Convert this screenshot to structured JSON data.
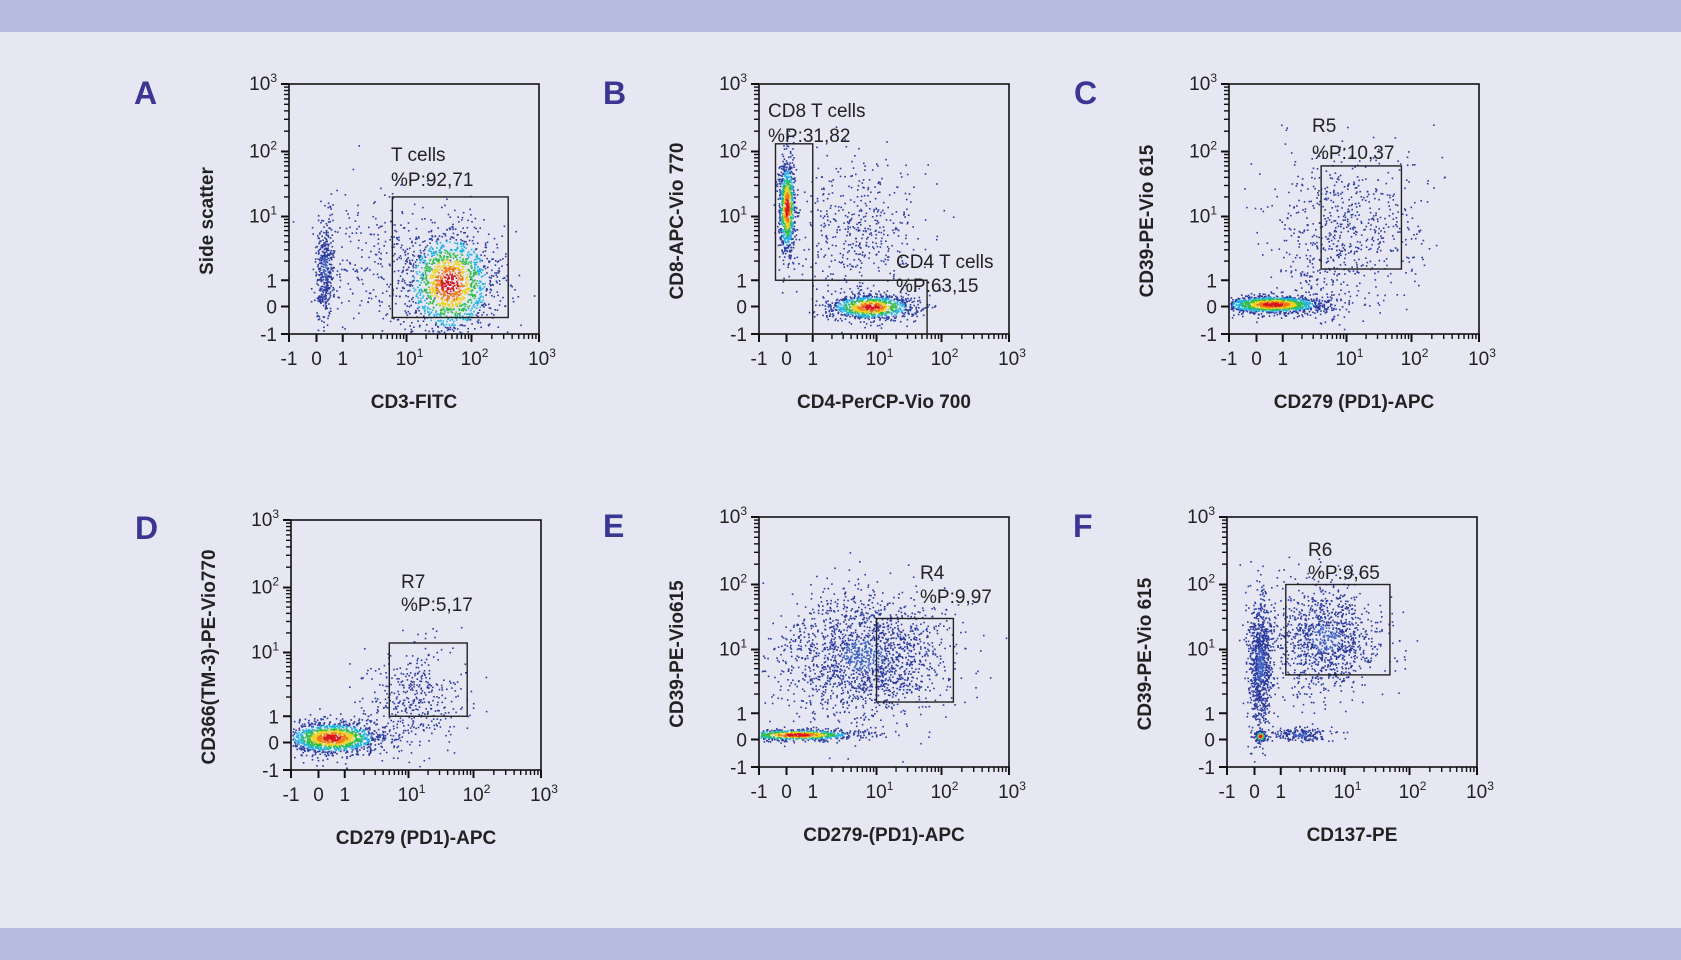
{
  "colors": {
    "background": "#e6e7f3",
    "band": "#b4bbdf",
    "panel_letter": "#3b3594",
    "density_colormap": [
      "#2b3a9e",
      "#1fb5e0",
      "#2fbf4a",
      "#f0d21c",
      "#f07a14",
      "#d9141c"
    ]
  },
  "chart_data": [
    {
      "panel": "A",
      "type": "scatter",
      "scale": "biexponential",
      "xlabel": "CD3-FITC",
      "ylabel": "Side scatter",
      "xlim": [
        -1,
        1000
      ],
      "ylim": [
        -1,
        1000
      ],
      "x_ticks": [
        {
          "b": "-1",
          "e": ""
        },
        {
          "b": "0",
          "e": ""
        },
        {
          "b": "1",
          "e": ""
        },
        {
          "b": "10",
          "e": "1"
        },
        {
          "b": "10",
          "e": "2"
        },
        {
          "b": "10",
          "e": "3"
        }
      ],
      "y_ticks": [
        {
          "b": "-1",
          "e": ""
        },
        {
          "b": "0",
          "e": ""
        },
        {
          "b": "1",
          "e": ""
        },
        {
          "b": "10",
          "e": "1"
        },
        {
          "b": "10",
          "e": "2"
        },
        {
          "b": "10",
          "e": "3"
        }
      ],
      "gates": [
        {
          "name": "T cells",
          "percent": "%P:92,71",
          "x": [
            6,
            350
          ],
          "y": [
            -0.4,
            20
          ]
        }
      ],
      "populations": [
        {
          "x_center": 45,
          "y_center": 0.9,
          "x_range": [
            8,
            250
          ],
          "y_range": [
            -0.3,
            18
          ],
          "density": "high",
          "n": 1500
        },
        {
          "x_center": 0.3,
          "y_center": 1.5,
          "x_range": [
            0.0,
            0.7
          ],
          "y_range": [
            -0.6,
            9
          ],
          "density": "low",
          "n": 400
        },
        {
          "x_center": 3,
          "y_center": 2,
          "x_range": [
            0.5,
            20
          ],
          "y_range": [
            -0.2,
            20
          ],
          "density": "sparse",
          "n": 250
        }
      ]
    },
    {
      "panel": "B",
      "type": "scatter",
      "scale": "biexponential",
      "xlabel": "CD4-PerCP-Vio 700",
      "ylabel": "CD8-APC-Vio 770",
      "xlim": [
        -1,
        1000
      ],
      "ylim": [
        -1,
        1000
      ],
      "x_ticks": [
        {
          "b": "-1",
          "e": ""
        },
        {
          "b": "0",
          "e": ""
        },
        {
          "b": "1",
          "e": ""
        },
        {
          "b": "10",
          "e": "1"
        },
        {
          "b": "10",
          "e": "2"
        },
        {
          "b": "10",
          "e": "3"
        }
      ],
      "y_ticks": [
        {
          "b": "-1",
          "e": ""
        },
        {
          "b": "0",
          "e": ""
        },
        {
          "b": "1",
          "e": ""
        },
        {
          "b": "10",
          "e": "1"
        },
        {
          "b": "10",
          "e": "2"
        },
        {
          "b": "10",
          "e": "3"
        }
      ],
      "gates": [
        {
          "name": "CD8 T cells",
          "percent": "%P:31,82",
          "x": [
            -0.4,
            1
          ],
          "y": [
            1,
            130
          ]
        },
        {
          "name": "CD4 T cells",
          "percent": "%P:63,15",
          "x": [
            1,
            60
          ],
          "y": [
            -1,
            1
          ]
        }
      ],
      "populations": [
        {
          "x_center": 0.0,
          "y_center": 14,
          "x_range": [
            -0.3,
            0.35
          ],
          "y_range": [
            2,
            70
          ],
          "density": "high",
          "n": 800
        },
        {
          "x_center": 8,
          "y_center": 0.0,
          "x_range": [
            1.5,
            40
          ],
          "y_range": [
            -0.45,
            0.55
          ],
          "density": "high",
          "n": 900
        },
        {
          "x_center": 5,
          "y_center": 6,
          "x_range": [
            1,
            30
          ],
          "y_range": [
            0.8,
            40
          ],
          "density": "sparse",
          "n": 450
        }
      ]
    },
    {
      "panel": "C",
      "type": "scatter",
      "scale": "biexponential",
      "xlabel": "CD279 (PD1)-APC",
      "ylabel": "CD39-PE-Vio 615",
      "xlim": [
        -1,
        1000
      ],
      "ylim": [
        -1,
        1000
      ],
      "x_ticks": [
        {
          "b": "-1",
          "e": ""
        },
        {
          "b": "0",
          "e": ""
        },
        {
          "b": "1",
          "e": ""
        },
        {
          "b": "10",
          "e": "1"
        },
        {
          "b": "10",
          "e": "2"
        },
        {
          "b": "10",
          "e": "3"
        }
      ],
      "y_ticks": [
        {
          "b": "-1",
          "e": ""
        },
        {
          "b": "0",
          "e": ""
        },
        {
          "b": "1",
          "e": ""
        },
        {
          "b": "10",
          "e": "1"
        },
        {
          "b": "10",
          "e": "2"
        },
        {
          "b": "10",
          "e": "3"
        }
      ],
      "gates": [
        {
          "name": "R5",
          "percent": "%P:10,37",
          "x": [
            4,
            70
          ],
          "y": [
            1.5,
            60
          ]
        }
      ],
      "populations": [
        {
          "x_center": 0.6,
          "y_center": 0.1,
          "x_range": [
            -0.3,
            15
          ],
          "y_range": [
            -0.25,
            0.45
          ],
          "density": "high",
          "n": 1300
        },
        {
          "x_center": 10,
          "y_center": 6,
          "x_range": [
            1,
            60
          ],
          "y_range": [
            0.5,
            50
          ],
          "density": "sparse",
          "n": 700
        }
      ]
    },
    {
      "panel": "D",
      "type": "scatter",
      "scale": "biexponential",
      "xlabel": "CD279 (PD1)-APC",
      "ylabel": "CD366(TM-3)-PE-Vio770",
      "xlim": [
        -1,
        1000
      ],
      "ylim": [
        -1,
        1000
      ],
      "x_ticks": [
        {
          "b": "-1",
          "e": ""
        },
        {
          "b": "0",
          "e": ""
        },
        {
          "b": "1",
          "e": ""
        },
        {
          "b": "10",
          "e": "1"
        },
        {
          "b": "10",
          "e": "2"
        },
        {
          "b": "10",
          "e": "3"
        }
      ],
      "y_ticks": [
        {
          "b": "-1",
          "e": ""
        },
        {
          "b": "0",
          "e": ""
        },
        {
          "b": "1",
          "e": ""
        },
        {
          "b": "10",
          "e": "1"
        },
        {
          "b": "10",
          "e": "2"
        },
        {
          "b": "10",
          "e": "3"
        }
      ],
      "gates": [
        {
          "name": "R7",
          "percent": "%P:5,17",
          "x": [
            5,
            80
          ],
          "y": [
            1,
            14
          ]
        }
      ],
      "populations": [
        {
          "x_center": 0.5,
          "y_center": 0.2,
          "x_range": [
            -0.3,
            12
          ],
          "y_range": [
            -0.5,
            0.8
          ],
          "density": "high",
          "n": 1300
        },
        {
          "x_center": 12,
          "y_center": 2,
          "x_range": [
            3,
            50
          ],
          "y_range": [
            0.3,
            10
          ],
          "density": "sparse",
          "n": 400
        }
      ]
    },
    {
      "panel": "E",
      "type": "scatter",
      "scale": "biexponential",
      "xlabel": "CD279-(PD1)-APC",
      "ylabel": "CD39-PE-Vio615",
      "xlim": [
        -1,
        1000
      ],
      "ylim": [
        -1,
        1000
      ],
      "x_ticks": [
        {
          "b": "-1",
          "e": ""
        },
        {
          "b": "0",
          "e": ""
        },
        {
          "b": "1",
          "e": ""
        },
        {
          "b": "10",
          "e": "1"
        },
        {
          "b": "10",
          "e": "2"
        },
        {
          "b": "10",
          "e": "3"
        }
      ],
      "y_ticks": [
        {
          "b": "-1",
          "e": ""
        },
        {
          "b": "0",
          "e": ""
        },
        {
          "b": "1",
          "e": ""
        },
        {
          "b": "10",
          "e": "1"
        },
        {
          "b": "10",
          "e": "2"
        },
        {
          "b": "10",
          "e": "3"
        }
      ],
      "gates": [
        {
          "name": "R4",
          "percent": "%P:9,97",
          "x": [
            10,
            150
          ],
          "y": [
            1.5,
            30
          ]
        }
      ],
      "populations": [
        {
          "x_center": 0.4,
          "y_center": 0.2,
          "x_range": [
            -0.3,
            30
          ],
          "y_range": [
            0.0,
            0.45
          ],
          "density": "high",
          "n": 700
        },
        {
          "x_center": 6,
          "y_center": 8,
          "x_range": [
            -0.2,
            120
          ],
          "y_range": [
            0.6,
            60
          ],
          "density": "low",
          "n": 1800
        }
      ]
    },
    {
      "panel": "F",
      "type": "scatter",
      "scale": "biexponential",
      "xlabel": "CD137-PE",
      "ylabel": "CD39-PE-Vio 615",
      "xlim": [
        -1,
        1000
      ],
      "ylim": [
        -1,
        1000
      ],
      "x_ticks": [
        {
          "b": "-1",
          "e": ""
        },
        {
          "b": "0",
          "e": ""
        },
        {
          "b": "1",
          "e": ""
        },
        {
          "b": "10",
          "e": "1"
        },
        {
          "b": "10",
          "e": "2"
        },
        {
          "b": "10",
          "e": "3"
        }
      ],
      "y_ticks": [
        {
          "b": "-1",
          "e": ""
        },
        {
          "b": "0",
          "e": ""
        },
        {
          "b": "1",
          "e": ""
        },
        {
          "b": "10",
          "e": "1"
        },
        {
          "b": "10",
          "e": "2"
        },
        {
          "b": "10",
          "e": "3"
        }
      ],
      "gates": [
        {
          "name": "R6",
          "percent": "%P:9,65",
          "x": [
            1.2,
            50
          ],
          "y": [
            4,
            100
          ]
        }
      ],
      "populations": [
        {
          "x_center": 0.2,
          "y_center": 0.15,
          "x_range": [
            0.05,
            0.4
          ],
          "y_range": [
            0.0,
            0.35
          ],
          "density": "high",
          "n": 300
        },
        {
          "x_center": 0.2,
          "y_center": 6,
          "x_range": [
            -0.1,
            0.8
          ],
          "y_range": [
            0.1,
            60
          ],
          "density": "low",
          "n": 900
        },
        {
          "x_center": 5,
          "y_center": 15,
          "x_range": [
            0.8,
            40
          ],
          "y_range": [
            1.5,
            70
          ],
          "density": "low",
          "n": 1100
        },
        {
          "x_center": 2,
          "y_center": 0.2,
          "x_range": [
            0.5,
            6
          ],
          "y_range": [
            0.0,
            0.5
          ],
          "density": "low",
          "n": 200
        }
      ]
    }
  ]
}
